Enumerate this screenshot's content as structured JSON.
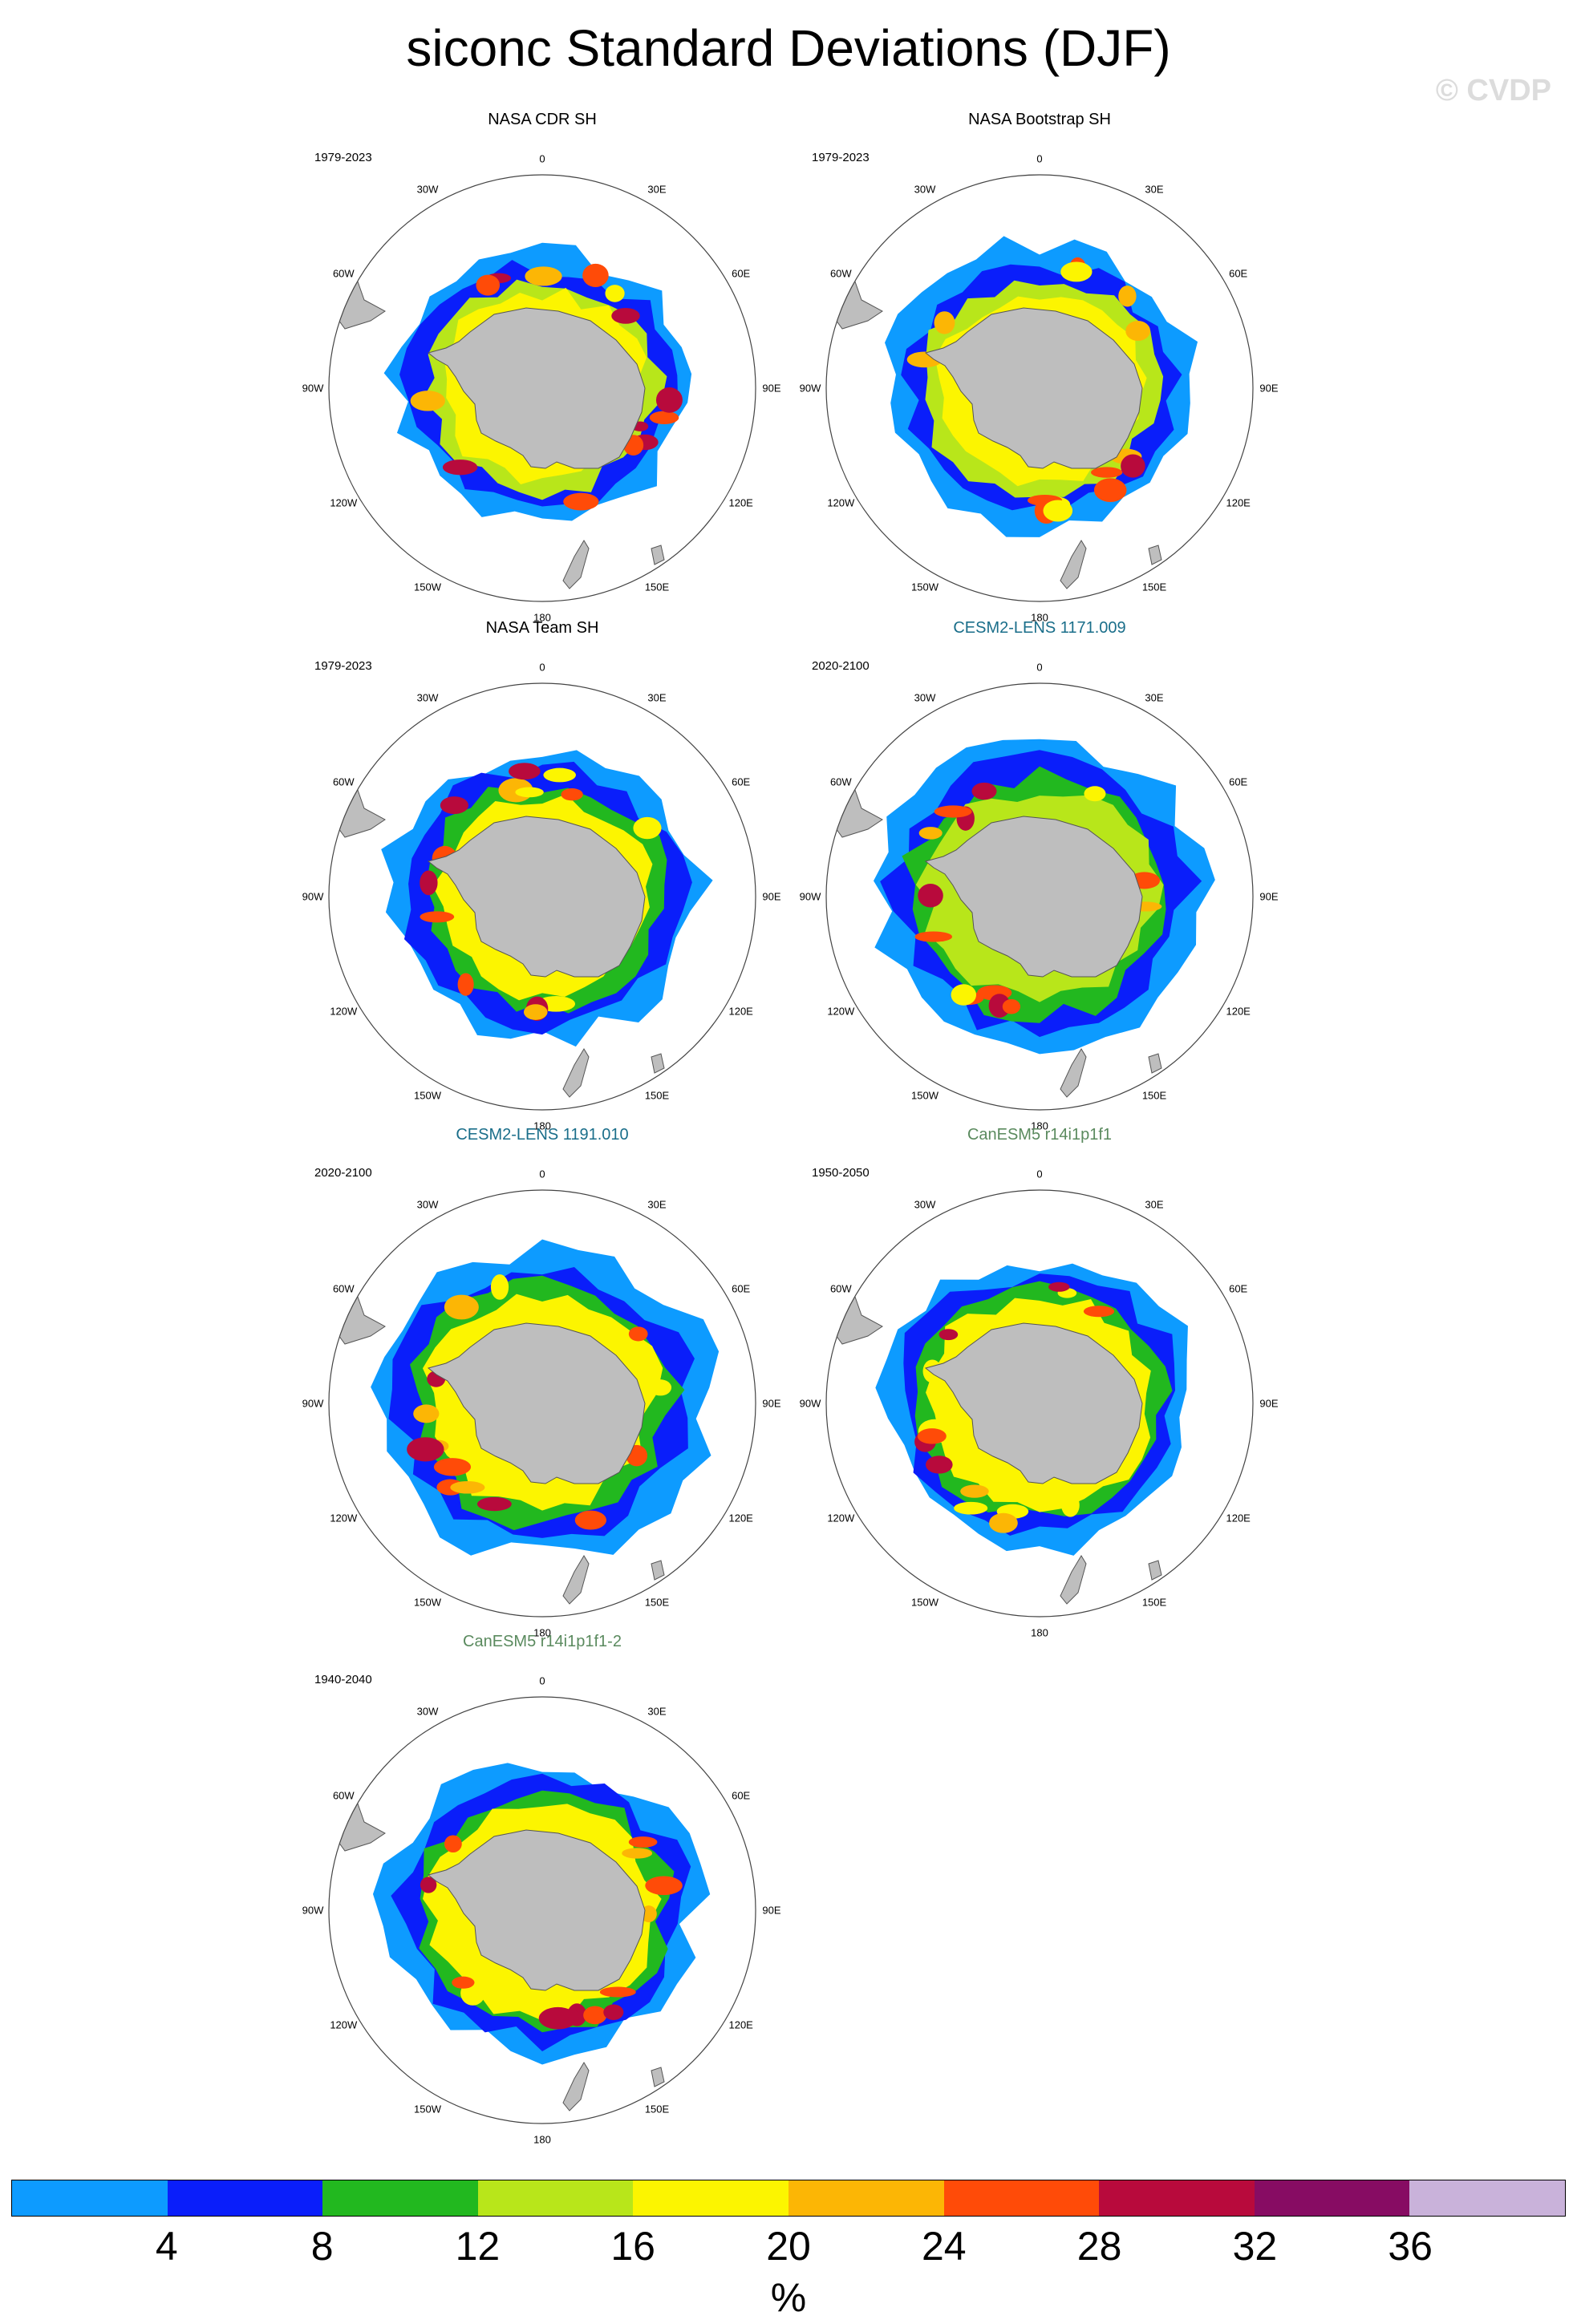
{
  "title": "siconc Standard Deviations (DJF)",
  "watermark": "© CVDP",
  "units": "%",
  "land_color": "#bebebe",
  "colorbar": {
    "colors": [
      "#0d9bff",
      "#0a1efa",
      "#22b81f",
      "#b8e61a",
      "#fcf500",
      "#fcb605",
      "#ff4b08",
      "#b80a3c",
      "#870c63",
      "#c9b2da"
    ],
    "tick_labels": [
      "4",
      "8",
      "12",
      "16",
      "20",
      "24",
      "28",
      "32",
      "36"
    ]
  },
  "lon_labels": [
    "0",
    "30E",
    "60E",
    "90E",
    "120E",
    "150E",
    "180",
    "150W",
    "120W",
    "90W",
    "60W",
    "30W"
  ],
  "panels": [
    {
      "title": "NASA CDR SH",
      "period": "1979-2023",
      "title_color": "#000000"
    },
    {
      "title": "NASA Bootstrap SH",
      "period": "1979-2023",
      "title_color": "#000000"
    },
    {
      "title": "NASA Team SH",
      "period": "1979-2023",
      "title_color": "#000000"
    },
    {
      "title": "CESM2-LENS 1171.009",
      "period": "2020-2100",
      "title_color": "#1a6e8a"
    },
    {
      "title": "CESM2-LENS 1191.010",
      "period": "2020-2100",
      "title_color": "#1a6e8a"
    },
    {
      "title": "CanESM5 r14i1p1f1",
      "period": "1950-2050",
      "title_color": "#5a8a5e"
    },
    {
      "title": "CanESM5 r14i1p1f1-2",
      "period": "1940-2040",
      "title_color": "#5a8a5e"
    }
  ]
}
